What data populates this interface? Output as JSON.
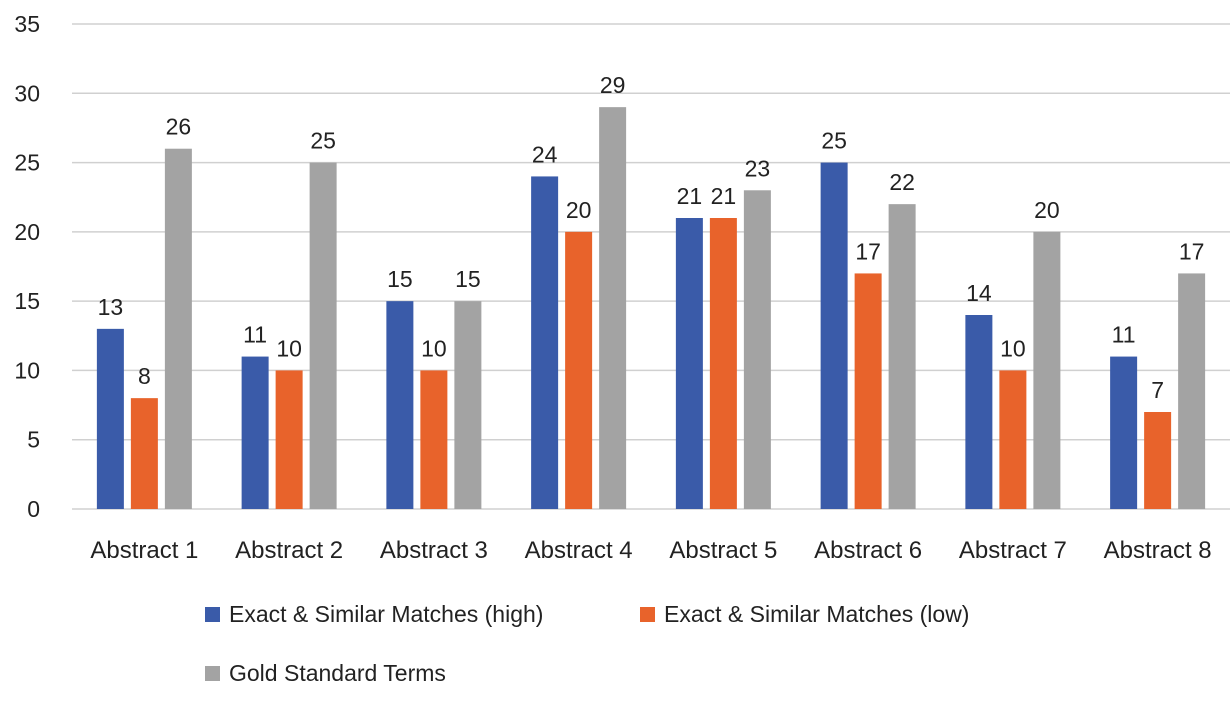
{
  "chart_data": {
    "type": "bar",
    "title": "",
    "xlabel": "",
    "ylabel": "",
    "ylim": [
      0,
      35
    ],
    "yticks": [
      0,
      5,
      10,
      15,
      20,
      25,
      30,
      35
    ],
    "grid": true,
    "legend_position": "bottom",
    "categories": [
      "Abstract 1",
      "Abstract 2",
      "Abstract 3",
      "Abstract 4",
      "Abstract 5",
      "Abstract 6",
      "Abstract 7",
      "Abstract 8"
    ],
    "series": [
      {
        "name": "Exact & Similar Matches (high)",
        "color": "#3a5ba9",
        "values": [
          13,
          11,
          15,
          24,
          21,
          25,
          14,
          11
        ]
      },
      {
        "name": "Exact & Similar Matches (low)",
        "color": "#e8632b",
        "values": [
          8,
          10,
          10,
          20,
          21,
          17,
          10,
          7
        ]
      },
      {
        "name": "Gold Standard Terms",
        "color": "#a3a3a3",
        "values": [
          26,
          25,
          15,
          29,
          23,
          22,
          20,
          17
        ]
      }
    ]
  }
}
